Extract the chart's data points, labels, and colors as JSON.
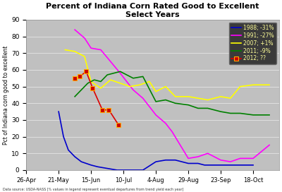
{
  "title": "Percent of Indiana Corn Rated Good to Excellent\nSelect Years",
  "ylabel": "Pct of Indiana corn good to excellent",
  "footer": "Data source: USDA-NASS [% values in legend represent eventual departures from trend yield each year]",
  "plot_bg": "#c0c0c0",
  "fig_bg": "#ffffff",
  "ylim": [
    0,
    90
  ],
  "yticks": [
    0,
    10,
    20,
    30,
    40,
    50,
    60,
    70,
    80,
    90
  ],
  "x_labels": [
    "26-Apr",
    "21-May",
    "15-Jun",
    "10-Jul",
    "4-Aug",
    "29-Aug",
    "23-Sep",
    "18-Oct"
  ],
  "x_positions": [
    0,
    1,
    2,
    3,
    4,
    5,
    6,
    7
  ],
  "series": [
    {
      "key": "1988",
      "color": "#0000cc",
      "label": "1988; -31%",
      "marker": null,
      "x": [
        1.0,
        1.15,
        1.3,
        1.5,
        1.7,
        2.0,
        2.2,
        2.5,
        2.8,
        3.0,
        3.3,
        3.6,
        4.0,
        4.3,
        4.6,
        5.0,
        5.3,
        5.5,
        5.8,
        6.0,
        6.3,
        6.6,
        7.0
      ],
      "y": [
        35,
        20,
        12,
        8,
        5,
        3,
        2,
        1,
        0,
        0,
        0,
        0,
        5,
        6,
        6,
        4,
        4,
        3,
        3,
        3,
        3,
        3,
        3
      ]
    },
    {
      "key": "1991",
      "color": "#ff00ff",
      "label": "1991; -27%",
      "marker": null,
      "x": [
        1.5,
        1.8,
        2.0,
        2.3,
        2.6,
        2.9,
        3.1,
        3.3,
        3.6,
        3.8,
        4.0,
        4.3,
        4.5,
        5.0,
        5.3,
        5.6,
        6.0,
        6.3,
        6.6,
        7.0,
        7.5
      ],
      "y": [
        84,
        79,
        73,
        72,
        65,
        58,
        53,
        48,
        43,
        38,
        33,
        28,
        23,
        7,
        8,
        10,
        6,
        5,
        7,
        7,
        15
      ]
    },
    {
      "key": "2007",
      "color": "#ffff00",
      "label": "2007; +1%",
      "marker": null,
      "x": [
        1.2,
        1.5,
        1.8,
        2.0,
        2.3,
        2.6,
        2.9,
        3.2,
        3.5,
        3.8,
        4.0,
        4.3,
        4.6,
        5.0,
        5.3,
        5.6,
        6.0,
        6.3,
        6.6,
        7.0,
        7.5
      ],
      "y": [
        72,
        71,
        68,
        53,
        49,
        54,
        52,
        50,
        51,
        53,
        47,
        50,
        44,
        44,
        43,
        42,
        44,
        43,
        50,
        51,
        51
      ]
    },
    {
      "key": "2011",
      "color": "#008000",
      "label": "2011; -9%",
      "marker": null,
      "x": [
        1.5,
        1.7,
        1.9,
        2.1,
        2.3,
        2.5,
        2.7,
        2.9,
        3.1,
        3.3,
        3.6,
        4.0,
        4.3,
        4.6,
        5.0,
        5.3,
        5.6,
        6.0,
        6.3,
        6.6,
        7.0,
        7.5
      ],
      "y": [
        44,
        48,
        52,
        54,
        53,
        57,
        58,
        59,
        57,
        55,
        56,
        41,
        42,
        40,
        39,
        37,
        37,
        35,
        34,
        34,
        33,
        33
      ]
    },
    {
      "key": "2012",
      "color": "#dd0000",
      "label": "2012; ??",
      "marker": "s",
      "x": [
        1.5,
        1.65,
        1.85,
        2.05,
        2.35,
        2.55,
        2.85
      ],
      "y": [
        55,
        56,
        59,
        49,
        36,
        36,
        27
      ]
    }
  ]
}
